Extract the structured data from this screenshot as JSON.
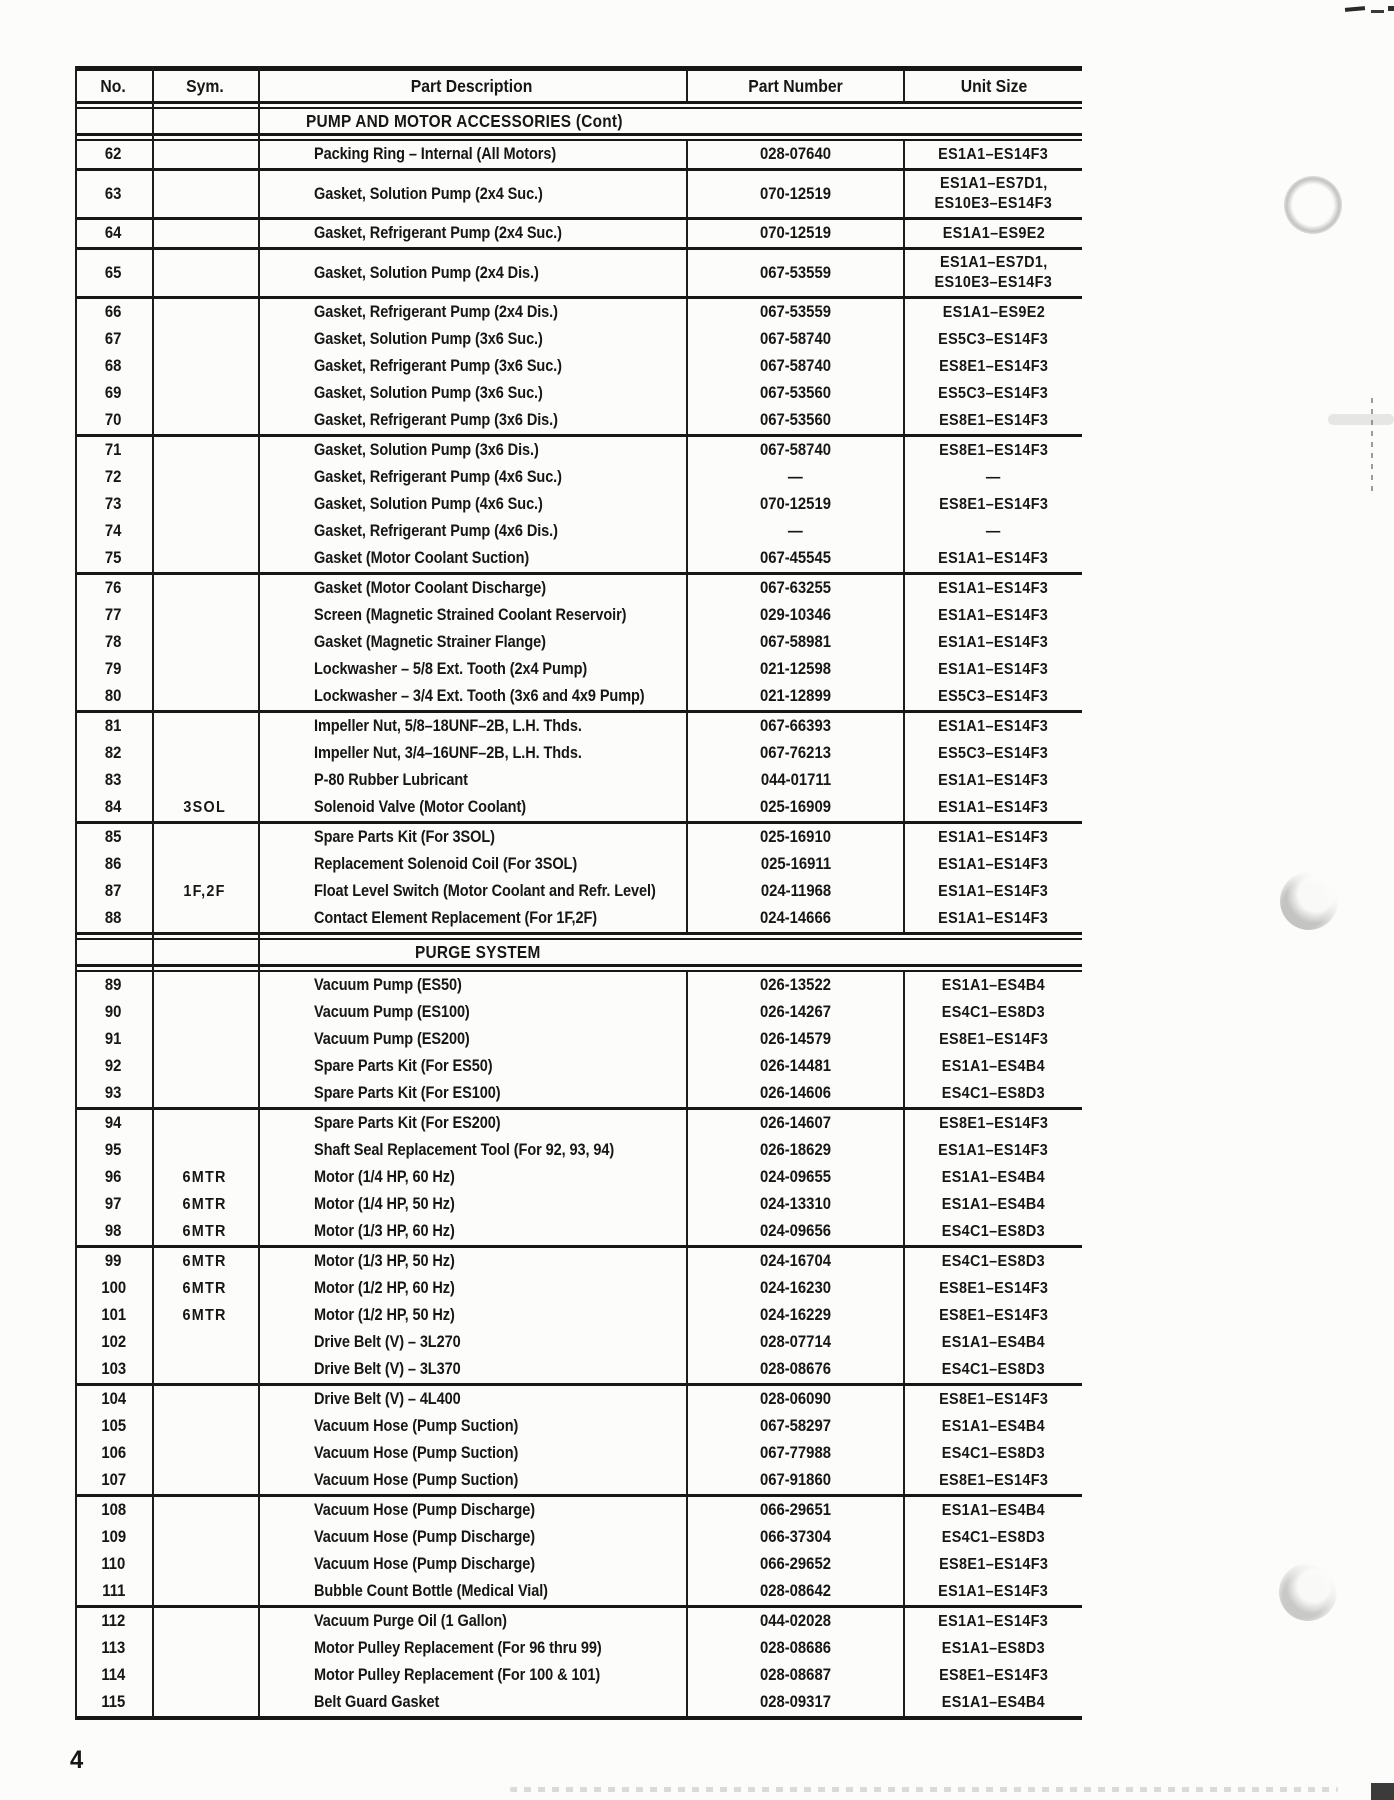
{
  "page": {
    "number": "4"
  },
  "table": {
    "columns": [
      "No.",
      "Sym.",
      "Part Description",
      "Part Number",
      "Unit Size"
    ],
    "sections": [
      {
        "title": "PUMP AND MOTOR ACCESSORIES (Cont)",
        "groups": [
          [
            {
              "no": "62",
              "sym": "",
              "desc": "Packing Ring – Internal (All Motors)",
              "part": "028-07640",
              "unit": [
                "ES1A1–ES14F3"
              ]
            }
          ],
          [
            {
              "no": "63",
              "sym": "",
              "desc": "Gasket, Solution Pump (2x4 Suc.)",
              "part": "070-12519",
              "unit": [
                "ES1A1–ES7D1,",
                "ES10E3–ES14F3"
              ]
            }
          ],
          [
            {
              "no": "64",
              "sym": "",
              "desc": "Gasket, Refrigerant Pump (2x4 Suc.)",
              "part": "070-12519",
              "unit": [
                "ES1A1–ES9E2"
              ]
            }
          ],
          [
            {
              "no": "65",
              "sym": "",
              "desc": "Gasket, Solution Pump (2x4 Dis.)",
              "part": "067-53559",
              "unit": [
                "ES1A1–ES7D1,",
                "ES10E3–ES14F3"
              ]
            }
          ],
          [
            {
              "no": "66",
              "sym": "",
              "desc": "Gasket, Refrigerant Pump (2x4 Dis.)",
              "part": "067-53559",
              "unit": [
                "ES1A1–ES9E2"
              ]
            },
            {
              "no": "67",
              "sym": "",
              "desc": "Gasket, Solution Pump (3x6 Suc.)",
              "part": "067-58740",
              "unit": [
                "ES5C3–ES14F3"
              ]
            },
            {
              "no": "68",
              "sym": "",
              "desc": "Gasket, Refrigerant Pump (3x6 Suc.)",
              "part": "067-58740",
              "unit": [
                "ES8E1–ES14F3"
              ]
            },
            {
              "no": "69",
              "sym": "",
              "desc": "Gasket, Solution Pump (3x6 Suc.)",
              "part": "067-53560",
              "unit": [
                "ES5C3–ES14F3"
              ]
            },
            {
              "no": "70",
              "sym": "",
              "desc": "Gasket, Refrigerant Pump (3x6 Dis.)",
              "part": "067-53560",
              "unit": [
                "ES8E1–ES14F3"
              ]
            }
          ],
          [
            {
              "no": "71",
              "sym": "",
              "desc": "Gasket, Solution Pump (3x6 Dis.)",
              "part": "067-58740",
              "unit": [
                "ES8E1–ES14F3"
              ]
            },
            {
              "no": "72",
              "sym": "",
              "desc": "Gasket, Refrigerant Pump (4x6 Suc.)",
              "part": "—",
              "unit": [
                "—"
              ]
            },
            {
              "no": "73",
              "sym": "",
              "desc": "Gasket, Solution Pump (4x6 Suc.)",
              "part": "070-12519",
              "unit": [
                "ES8E1–ES14F3"
              ]
            },
            {
              "no": "74",
              "sym": "",
              "desc": "Gasket, Refrigerant Pump (4x6 Dis.)",
              "part": "—",
              "unit": [
                "—"
              ]
            },
            {
              "no": "75",
              "sym": "",
              "desc": "Gasket (Motor Coolant Suction)",
              "part": "067-45545",
              "unit": [
                "ES1A1–ES14F3"
              ]
            }
          ],
          [
            {
              "no": "76",
              "sym": "",
              "desc": "Gasket (Motor Coolant Discharge)",
              "part": "067-63255",
              "unit": [
                "ES1A1–ES14F3"
              ]
            },
            {
              "no": "77",
              "sym": "",
              "desc": "Screen (Magnetic Strained Coolant Reservoir)",
              "part": "029-10346",
              "unit": [
                "ES1A1–ES14F3"
              ]
            },
            {
              "no": "78",
              "sym": "",
              "desc": "Gasket (Magnetic Strainer Flange)",
              "part": "067-58981",
              "unit": [
                "ES1A1–ES14F3"
              ]
            },
            {
              "no": "79",
              "sym": "",
              "desc": "Lockwasher – 5/8 Ext. Tooth (2x4 Pump)",
              "part": "021-12598",
              "unit": [
                "ES1A1–ES14F3"
              ]
            },
            {
              "no": "80",
              "sym": "",
              "desc": "Lockwasher – 3/4 Ext. Tooth (3x6 and 4x9 Pump)",
              "part": "021-12899",
              "unit": [
                "ES5C3–ES14F3"
              ]
            }
          ],
          [
            {
              "no": "81",
              "sym": "",
              "desc": "Impeller Nut, 5/8–18UNF–2B, L.H. Thds.",
              "part": "067-66393",
              "unit": [
                "ES1A1–ES14F3"
              ]
            },
            {
              "no": "82",
              "sym": "",
              "desc": "Impeller Nut, 3/4–16UNF–2B, L.H. Thds.",
              "part": "067-76213",
              "unit": [
                "ES5C3–ES14F3"
              ]
            },
            {
              "no": "83",
              "sym": "",
              "desc": "P-80 Rubber Lubricant",
              "part": "044-01711",
              "unit": [
                "ES1A1–ES14F3"
              ]
            },
            {
              "no": "84",
              "sym": "3SOL",
              "desc": "Solenoid Valve (Motor Coolant)",
              "part": "025-16909",
              "unit": [
                "ES1A1–ES14F3"
              ]
            }
          ],
          [
            {
              "no": "85",
              "sym": "",
              "desc": "Spare Parts Kit (For 3SOL)",
              "part": "025-16910",
              "unit": [
                "ES1A1–ES14F3"
              ]
            },
            {
              "no": "86",
              "sym": "",
              "desc": "Replacement Solenoid Coil (For 3SOL)",
              "part": "025-16911",
              "unit": [
                "ES1A1–ES14F3"
              ]
            },
            {
              "no": "87",
              "sym": "1F,2F",
              "desc": "Float Level Switch (Motor Coolant and Refr. Level)",
              "part": "024-11968",
              "unit": [
                "ES1A1–ES14F3"
              ]
            },
            {
              "no": "88",
              "sym": "",
              "desc": "Contact Element Replacement (For 1F,2F)",
              "part": "024-14666",
              "unit": [
                "ES1A1–ES14F3"
              ]
            }
          ]
        ]
      },
      {
        "title": "PURGE SYSTEM",
        "groups": [
          [
            {
              "no": "89",
              "sym": "",
              "desc": "Vacuum Pump (ES50)",
              "part": "026-13522",
              "unit": [
                "ES1A1–ES4B4"
              ]
            },
            {
              "no": "90",
              "sym": "",
              "desc": "Vacuum Pump (ES100)",
              "part": "026-14267",
              "unit": [
                "ES4C1–ES8D3"
              ]
            },
            {
              "no": "91",
              "sym": "",
              "desc": "Vacuum Pump (ES200)",
              "part": "026-14579",
              "unit": [
                "ES8E1–ES14F3"
              ]
            },
            {
              "no": "92",
              "sym": "",
              "desc": "Spare Parts Kit (For ES50)",
              "part": "026-14481",
              "unit": [
                "ES1A1–ES4B4"
              ]
            },
            {
              "no": "93",
              "sym": "",
              "desc": "Spare Parts Kit (For ES100)",
              "part": "026-14606",
              "unit": [
                "ES4C1–ES8D3"
              ]
            }
          ],
          [
            {
              "no": "94",
              "sym": "",
              "desc": "Spare Parts Kit (For ES200)",
              "part": "026-14607",
              "unit": [
                "ES8E1–ES14F3"
              ]
            },
            {
              "no": "95",
              "sym": "",
              "desc": "Shaft Seal Replacement Tool (For 92, 93, 94)",
              "part": "026-18629",
              "unit": [
                "ES1A1–ES14F3"
              ]
            },
            {
              "no": "96",
              "sym": "6MTR",
              "desc": "Motor (1/4 HP, 60 Hz)",
              "part": "024-09655",
              "unit": [
                "ES1A1–ES4B4"
              ]
            },
            {
              "no": "97",
              "sym": "6MTR",
              "desc": "Motor (1/4 HP, 50 Hz)",
              "part": "024-13310",
              "unit": [
                "ES1A1–ES4B4"
              ]
            },
            {
              "no": "98",
              "sym": "6MTR",
              "desc": "Motor (1/3 HP, 60 Hz)",
              "part": "024-09656",
              "unit": [
                "ES4C1–ES8D3"
              ]
            }
          ],
          [
            {
              "no": "99",
              "sym": "6MTR",
              "desc": "Motor (1/3 HP, 50 Hz)",
              "part": "024-16704",
              "unit": [
                "ES4C1–ES8D3"
              ]
            },
            {
              "no": "100",
              "sym": "6MTR",
              "desc": "Motor (1/2 HP, 60 Hz)",
              "part": "024-16230",
              "unit": [
                "ES8E1–ES14F3"
              ]
            },
            {
              "no": "101",
              "sym": "6MTR",
              "desc": "Motor (1/2 HP, 50 Hz)",
              "part": "024-16229",
              "unit": [
                "ES8E1–ES14F3"
              ]
            },
            {
              "no": "102",
              "sym": "",
              "desc": "Drive Belt (V) – 3L270",
              "part": "028-07714",
              "unit": [
                "ES1A1–ES4B4"
              ]
            },
            {
              "no": "103",
              "sym": "",
              "desc": "Drive Belt (V) – 3L370",
              "part": "028-08676",
              "unit": [
                "ES4C1–ES8D3"
              ]
            }
          ],
          [
            {
              "no": "104",
              "sym": "",
              "desc": "Drive Belt (V) – 4L400",
              "part": "028-06090",
              "unit": [
                "ES8E1–ES14F3"
              ]
            },
            {
              "no": "105",
              "sym": "",
              "desc": "Vacuum Hose (Pump Suction)",
              "part": "067-58297",
              "unit": [
                "ES1A1–ES4B4"
              ]
            },
            {
              "no": "106",
              "sym": "",
              "desc": "Vacuum Hose (Pump Suction)",
              "part": "067-77988",
              "unit": [
                "ES4C1–ES8D3"
              ]
            },
            {
              "no": "107",
              "sym": "",
              "desc": "Vacuum Hose (Pump Suction)",
              "part": "067-91860",
              "unit": [
                "ES8E1–ES14F3"
              ]
            }
          ],
          [
            {
              "no": "108",
              "sym": "",
              "desc": "Vacuum Hose (Pump Discharge)",
              "part": "066-29651",
              "unit": [
                "ES1A1–ES4B4"
              ]
            },
            {
              "no": "109",
              "sym": "",
              "desc": "Vacuum Hose (Pump Discharge)",
              "part": "066-37304",
              "unit": [
                "ES4C1–ES8D3"
              ]
            },
            {
              "no": "110",
              "sym": "",
              "desc": "Vacuum Hose (Pump Discharge)",
              "part": "066-29652",
              "unit": [
                "ES8E1–ES14F3"
              ]
            },
            {
              "no": "111",
              "sym": "",
              "desc": "Bubble Count Bottle (Medical Vial)",
              "part": "028-08642",
              "unit": [
                "ES1A1–ES14F3"
              ]
            }
          ],
          [
            {
              "no": "112",
              "sym": "",
              "desc": "Vacuum Purge Oil (1 Gallon)",
              "part": "044-02028",
              "unit": [
                "ES1A1–ES14F3"
              ]
            },
            {
              "no": "113",
              "sym": "",
              "desc": "Motor Pulley Replacement (For 96 thru 99)",
              "part": "028-08686",
              "unit": [
                "ES1A1–ES8D3"
              ]
            },
            {
              "no": "114",
              "sym": "",
              "desc": "Motor Pulley Replacement (For 100 & 101)",
              "part": "028-08687",
              "unit": [
                "ES8E1–ES14F3"
              ]
            },
            {
              "no": "115",
              "sym": "",
              "desc": "Belt Guard Gasket",
              "part": "028-09317",
              "unit": [
                "ES1A1–ES4B4"
              ]
            }
          ]
        ]
      }
    ]
  }
}
